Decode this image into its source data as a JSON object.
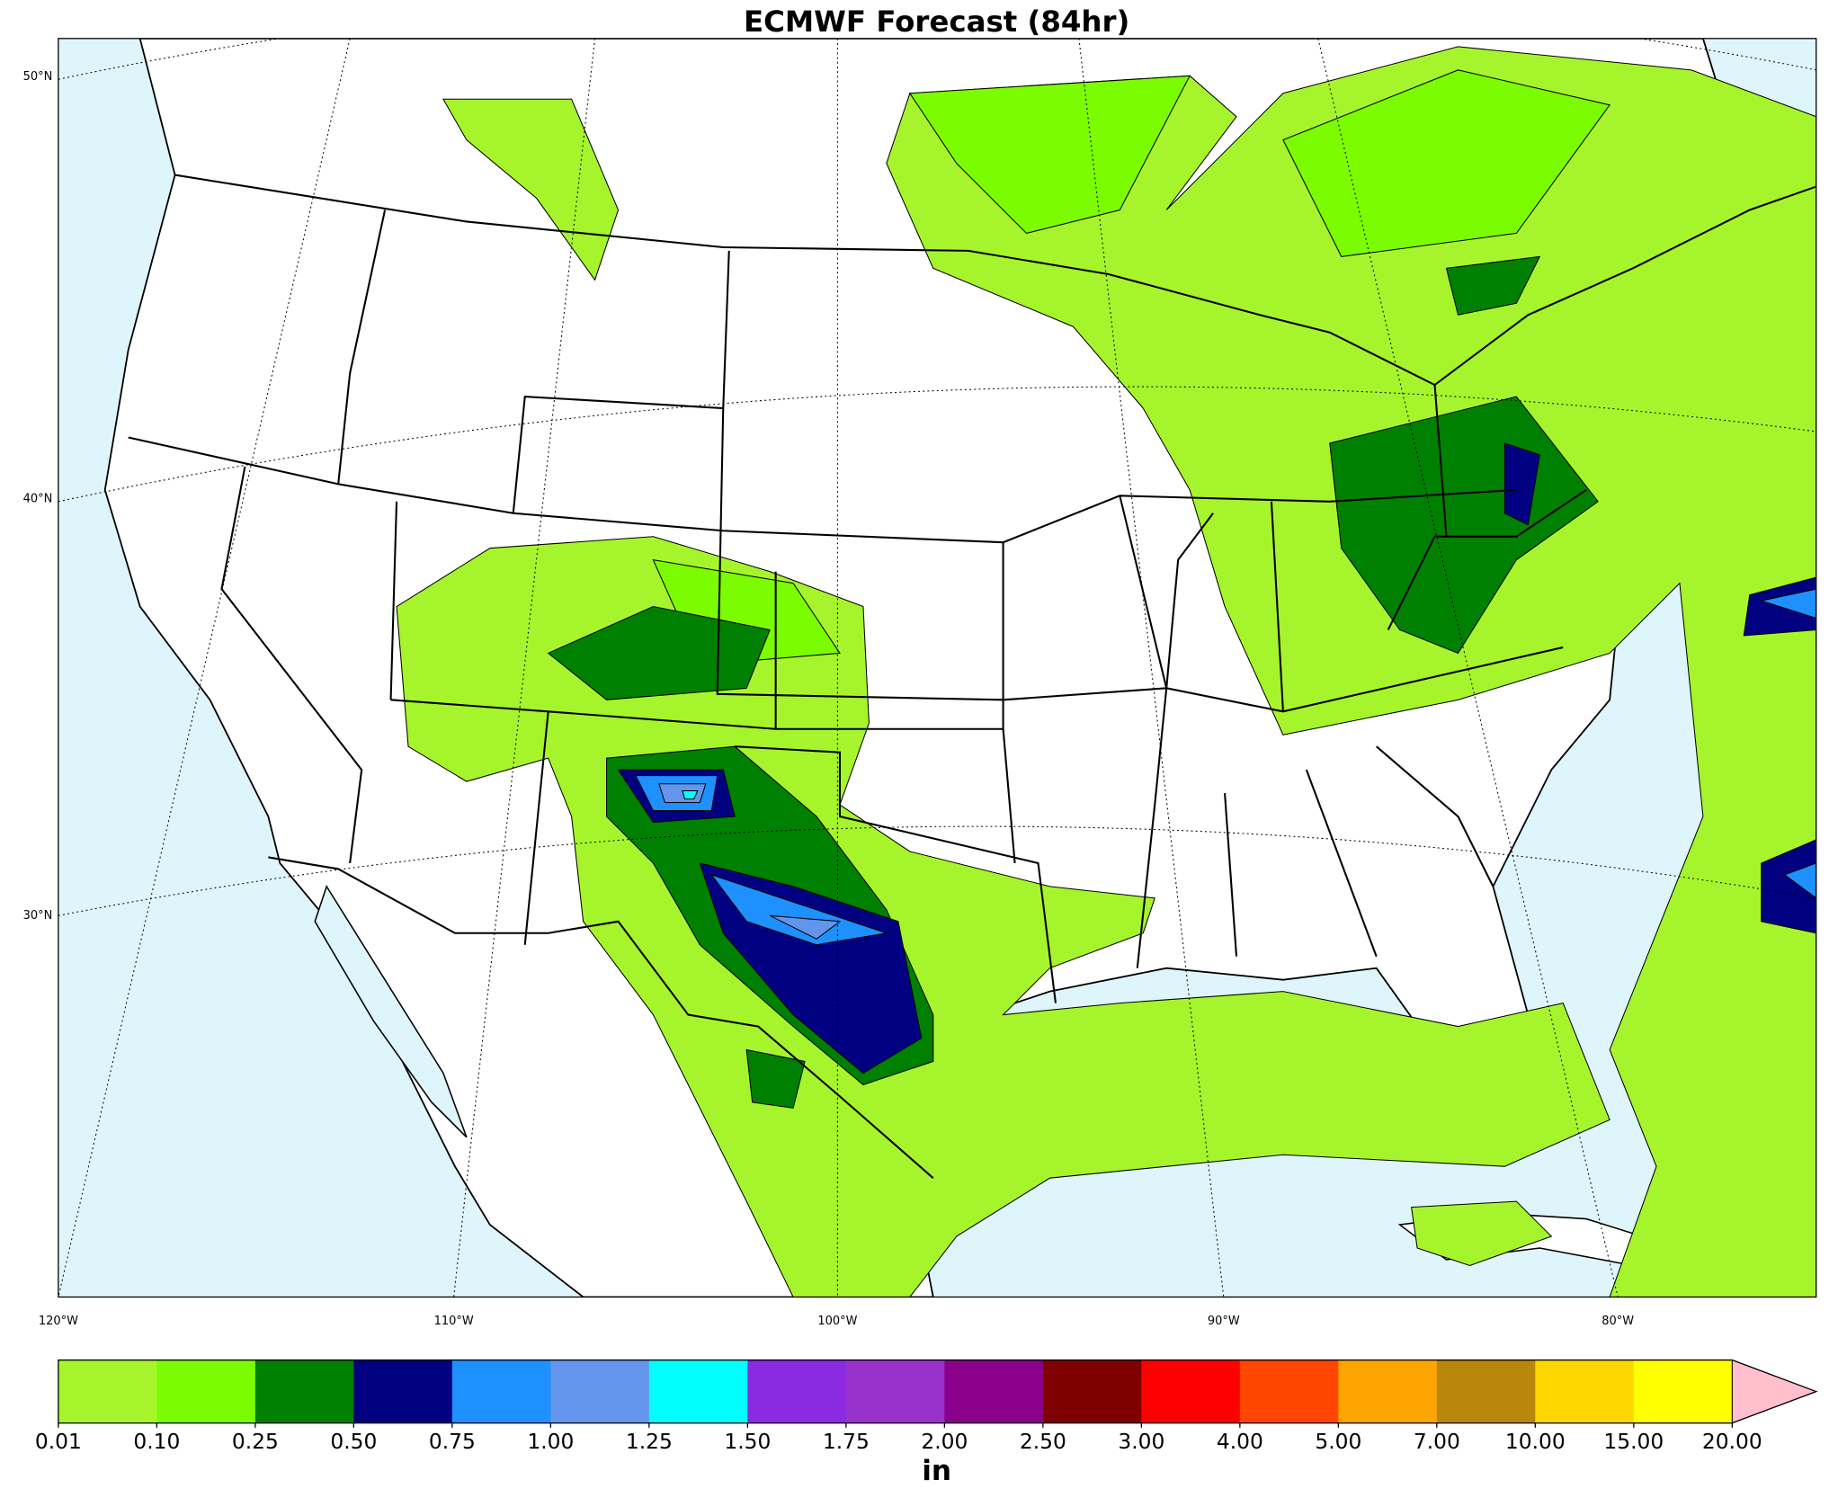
{
  "title": "ECMWF Forecast (84hr)",
  "map": {
    "lat_labels": [
      "50°N",
      "40°N",
      "30°N"
    ],
    "lon_labels": [
      "120°W",
      "110°W",
      "100°W",
      "90°W",
      "80°W"
    ]
  },
  "colorbar": {
    "label": "in",
    "levels": [
      "0.01",
      "0.10",
      "0.25",
      "0.50",
      "0.75",
      "1.00",
      "1.25",
      "1.50",
      "1.75",
      "2.00",
      "2.50",
      "3.00",
      "4.00",
      "5.00",
      "7.00",
      "10.00",
      "15.00",
      "20.00"
    ],
    "colors": [
      "#a6f52c",
      "#7cfc00",
      "#008000",
      "#000080",
      "#1e90ff",
      "#6495ed",
      "#00ffff",
      "#8a2be2",
      "#9932cc",
      "#8b008b",
      "#800000",
      "#ff0000",
      "#ff4500",
      "#ffa500",
      "#b8860b",
      "#ffd700",
      "#ffff00"
    ],
    "extend_color": "#ffc0cb"
  }
}
